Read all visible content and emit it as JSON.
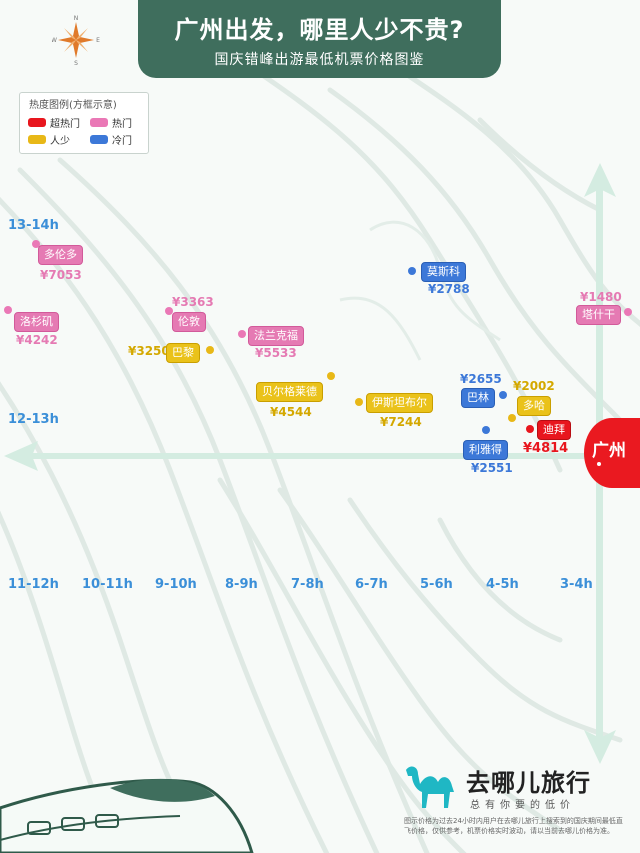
{
  "header": {
    "title": "广州出发，哪里人少不贵?",
    "subtitle": "国庆错峰出游最低机票价格图鉴"
  },
  "compass": {
    "icon": "compass-rose-icon",
    "n": "N",
    "e": "E",
    "s": "S",
    "w": "W"
  },
  "legend": {
    "title": "热度图例(方框示意)",
    "items": [
      {
        "label": "超热门",
        "color": "#e8161e"
      },
      {
        "label": "热门",
        "color": "#ea78b6"
      },
      {
        "label": "人少",
        "color": "#e8b817"
      },
      {
        "label": "冷门",
        "color": "#3c78d8"
      }
    ]
  },
  "axis": {
    "row_labels": [
      "13-14h",
      "12-13h"
    ],
    "ticks": [
      "11-12h",
      "10-11h",
      "9-10h",
      "8-9h",
      "7-8h",
      "6-7h",
      "5-6h",
      "4-5h",
      "3-4h"
    ]
  },
  "origin": {
    "label": "广州"
  },
  "cities": [
    {
      "name": "多伦多",
      "price": "¥7053",
      "heat": "pink"
    },
    {
      "name": "洛杉矶",
      "price": "¥4242",
      "heat": "pink"
    },
    {
      "name": "伦敦",
      "price": "¥3363",
      "heat": "pink"
    },
    {
      "name": "巴黎",
      "price": "¥3250",
      "heat": "yellow"
    },
    {
      "name": "法兰克福",
      "price": "¥5533",
      "heat": "pink"
    },
    {
      "name": "贝尔格莱德",
      "price": "¥4544",
      "heat": "yellow"
    },
    {
      "name": "伊斯坦布尔",
      "price": "¥7244",
      "heat": "yellow"
    },
    {
      "name": "莫斯科",
      "price": "¥2788",
      "heat": "blue"
    },
    {
      "name": "巴林",
      "price": "¥2655",
      "heat": "blue"
    },
    {
      "name": "多哈",
      "price": "¥2002",
      "heat": "yellow"
    },
    {
      "name": "迪拜",
      "price": "¥4814",
      "heat": "red"
    },
    {
      "name": "利雅得",
      "price": "¥2551",
      "heat": "blue"
    },
    {
      "name": "塔什干",
      "price": "¥1480",
      "heat": "pink"
    }
  ],
  "brand": {
    "logo_icon": "camel-logo-icon",
    "name": "去哪儿旅行",
    "slogan": "总有你要的低价",
    "disclaimer": "图示价格为过去24小时内用户在去哪儿旅行上搜索到的国庆期间最低直飞价格，仅供参考，机票价格实时波动，请以当前去哪儿价格为准。"
  }
}
